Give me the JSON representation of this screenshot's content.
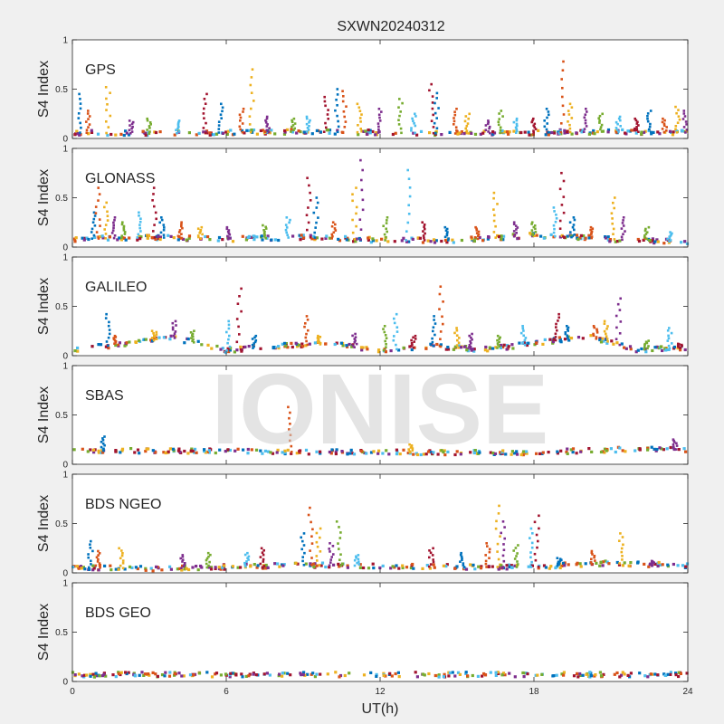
{
  "chart_data": {
    "type": "scatter",
    "title": "SXWN20240312",
    "xlabel": "UT(h)",
    "ylabel": "S4 Index",
    "xlim": [
      0,
      24
    ],
    "ylim": [
      0,
      1
    ],
    "xticks": [
      "0",
      "6",
      "12",
      "18",
      "24"
    ],
    "yticks": [
      "0",
      "0.5",
      "1"
    ],
    "grid": false,
    "watermark": "IONISE",
    "colors": [
      "#0072bd",
      "#d95319",
      "#edb120",
      "#7e2f8e",
      "#77ac30",
      "#4dbeee",
      "#a2142f"
    ],
    "panels": [
      {
        "label": "GPS",
        "baseline": [
          [
            0,
            0.06
          ],
          [
            3,
            0.05
          ],
          [
            6,
            0.06
          ],
          [
            9,
            0.07
          ],
          [
            12,
            0.06
          ],
          [
            15,
            0.05
          ],
          [
            18,
            0.06
          ],
          [
            21,
            0.07
          ],
          [
            24,
            0.06
          ]
        ],
        "events": [
          [
            0.3,
            0.45
          ],
          [
            0.6,
            0.28
          ],
          [
            1.4,
            0.52
          ],
          [
            2.3,
            0.18
          ],
          [
            3.0,
            0.2
          ],
          [
            4.1,
            0.18
          ],
          [
            5.2,
            0.45
          ],
          [
            5.8,
            0.35
          ],
          [
            6.6,
            0.3
          ],
          [
            7.0,
            0.7
          ],
          [
            7.6,
            0.22
          ],
          [
            8.6,
            0.2
          ],
          [
            9.2,
            0.22
          ],
          [
            9.9,
            0.42
          ],
          [
            10.3,
            0.5
          ],
          [
            10.6,
            0.48
          ],
          [
            11.2,
            0.35
          ],
          [
            12.0,
            0.3
          ],
          [
            12.8,
            0.4
          ],
          [
            13.3,
            0.25
          ],
          [
            14.0,
            0.55
          ],
          [
            14.2,
            0.46
          ],
          [
            14.9,
            0.3
          ],
          [
            15.4,
            0.25
          ],
          [
            16.2,
            0.18
          ],
          [
            16.7,
            0.28
          ],
          [
            17.3,
            0.2
          ],
          [
            18.0,
            0.2
          ],
          [
            18.5,
            0.3
          ],
          [
            19.1,
            0.78
          ],
          [
            19.4,
            0.35
          ],
          [
            20.0,
            0.3
          ],
          [
            20.6,
            0.25
          ],
          [
            21.3,
            0.22
          ],
          [
            22.0,
            0.2
          ],
          [
            22.5,
            0.28
          ],
          [
            23.1,
            0.2
          ],
          [
            23.6,
            0.32
          ],
          [
            23.9,
            0.28
          ]
        ]
      },
      {
        "label": "GLONASS",
        "baseline": [
          [
            0,
            0.08
          ],
          [
            3,
            0.1
          ],
          [
            6,
            0.08
          ],
          [
            9,
            0.1
          ],
          [
            12,
            0.07
          ],
          [
            15,
            0.07
          ],
          [
            18,
            0.12
          ],
          [
            21,
            0.08
          ],
          [
            24,
            0.05
          ]
        ],
        "events": [
          [
            0.8,
            0.35
          ],
          [
            1.0,
            0.6
          ],
          [
            1.3,
            0.45
          ],
          [
            1.6,
            0.3
          ],
          [
            2.0,
            0.25
          ],
          [
            2.6,
            0.35
          ],
          [
            3.2,
            0.6
          ],
          [
            3.5,
            0.3
          ],
          [
            4.2,
            0.25
          ],
          [
            5.0,
            0.2
          ],
          [
            6.1,
            0.2
          ],
          [
            7.5,
            0.22
          ],
          [
            8.4,
            0.3
          ],
          [
            9.2,
            0.7
          ],
          [
            9.5,
            0.5
          ],
          [
            10.2,
            0.25
          ],
          [
            11.0,
            0.6
          ],
          [
            11.3,
            0.88
          ],
          [
            12.2,
            0.3
          ],
          [
            13.1,
            0.78
          ],
          [
            13.7,
            0.25
          ],
          [
            14.6,
            0.2
          ],
          [
            15.8,
            0.2
          ],
          [
            16.5,
            0.55
          ],
          [
            17.3,
            0.25
          ],
          [
            18.0,
            0.25
          ],
          [
            18.8,
            0.4
          ],
          [
            19.1,
            0.75
          ],
          [
            19.5,
            0.3
          ],
          [
            20.2,
            0.2
          ],
          [
            21.1,
            0.5
          ],
          [
            21.5,
            0.3
          ],
          [
            22.4,
            0.2
          ],
          [
            23.3,
            0.15
          ]
        ]
      },
      {
        "label": "GALILEO",
        "baseline": [
          [
            0,
            0.06
          ],
          [
            2,
            0.12
          ],
          [
            4,
            0.18
          ],
          [
            6,
            0.05
          ],
          [
            8,
            0.1
          ],
          [
            10,
            0.12
          ],
          [
            12,
            0.05
          ],
          [
            14,
            0.1
          ],
          [
            16,
            0.06
          ],
          [
            18,
            0.12
          ],
          [
            20,
            0.2
          ],
          [
            22,
            0.06
          ],
          [
            24,
            0.08
          ]
        ],
        "events": [
          [
            1.4,
            0.42
          ],
          [
            1.7,
            0.2
          ],
          [
            3.2,
            0.25
          ],
          [
            4.0,
            0.35
          ],
          [
            4.7,
            0.25
          ],
          [
            6.1,
            0.35
          ],
          [
            6.5,
            0.68
          ],
          [
            7.1,
            0.2
          ],
          [
            9.1,
            0.4
          ],
          [
            9.6,
            0.2
          ],
          [
            11.0,
            0.22
          ],
          [
            12.2,
            0.3
          ],
          [
            12.6,
            0.42
          ],
          [
            13.3,
            0.2
          ],
          [
            14.1,
            0.4
          ],
          [
            14.4,
            0.7
          ],
          [
            15.0,
            0.28
          ],
          [
            15.5,
            0.22
          ],
          [
            16.6,
            0.2
          ],
          [
            17.6,
            0.3
          ],
          [
            18.9,
            0.42
          ],
          [
            19.3,
            0.3
          ],
          [
            20.4,
            0.3
          ],
          [
            20.8,
            0.35
          ],
          [
            21.3,
            0.58
          ],
          [
            22.4,
            0.15
          ],
          [
            23.3,
            0.28
          ],
          [
            23.7,
            0.12
          ]
        ]
      },
      {
        "label": "SBAS",
        "baseline": [
          [
            0,
            0.14
          ],
          [
            6,
            0.13
          ],
          [
            12,
            0.12
          ],
          [
            18,
            0.12
          ],
          [
            23,
            0.16
          ],
          [
            24,
            0.14
          ]
        ],
        "events": [
          [
            1.2,
            0.28
          ],
          [
            8.5,
            0.58
          ],
          [
            13.2,
            0.2
          ],
          [
            23.5,
            0.25
          ]
        ]
      },
      {
        "label": "BDS NGEO",
        "baseline": [
          [
            0,
            0.06
          ],
          [
            3,
            0.04
          ],
          [
            6,
            0.06
          ],
          [
            9,
            0.08
          ],
          [
            12,
            0.07
          ],
          [
            15,
            0.06
          ],
          [
            18,
            0.06
          ],
          [
            21,
            0.1
          ],
          [
            24,
            0.07
          ]
        ],
        "events": [
          [
            0.7,
            0.32
          ],
          [
            1.0,
            0.22
          ],
          [
            1.9,
            0.25
          ],
          [
            4.3,
            0.18
          ],
          [
            5.3,
            0.2
          ],
          [
            6.8,
            0.2
          ],
          [
            7.4,
            0.25
          ],
          [
            9.0,
            0.4
          ],
          [
            9.3,
            0.66
          ],
          [
            9.6,
            0.45
          ],
          [
            10.1,
            0.3
          ],
          [
            10.4,
            0.52
          ],
          [
            11.1,
            0.18
          ],
          [
            14.0,
            0.25
          ],
          [
            15.2,
            0.2
          ],
          [
            16.2,
            0.3
          ],
          [
            16.6,
            0.68
          ],
          [
            16.8,
            0.52
          ],
          [
            17.3,
            0.28
          ],
          [
            17.9,
            0.45
          ],
          [
            18.1,
            0.58
          ],
          [
            19.0,
            0.15
          ],
          [
            20.3,
            0.22
          ],
          [
            21.4,
            0.4
          ],
          [
            22.6,
            0.12
          ]
        ]
      },
      {
        "label": "BDS GEO",
        "baseline": [
          [
            0,
            0.07
          ],
          [
            6,
            0.07
          ],
          [
            12,
            0.07
          ],
          [
            18,
            0.07
          ],
          [
            24,
            0.07
          ]
        ],
        "events": []
      }
    ]
  }
}
